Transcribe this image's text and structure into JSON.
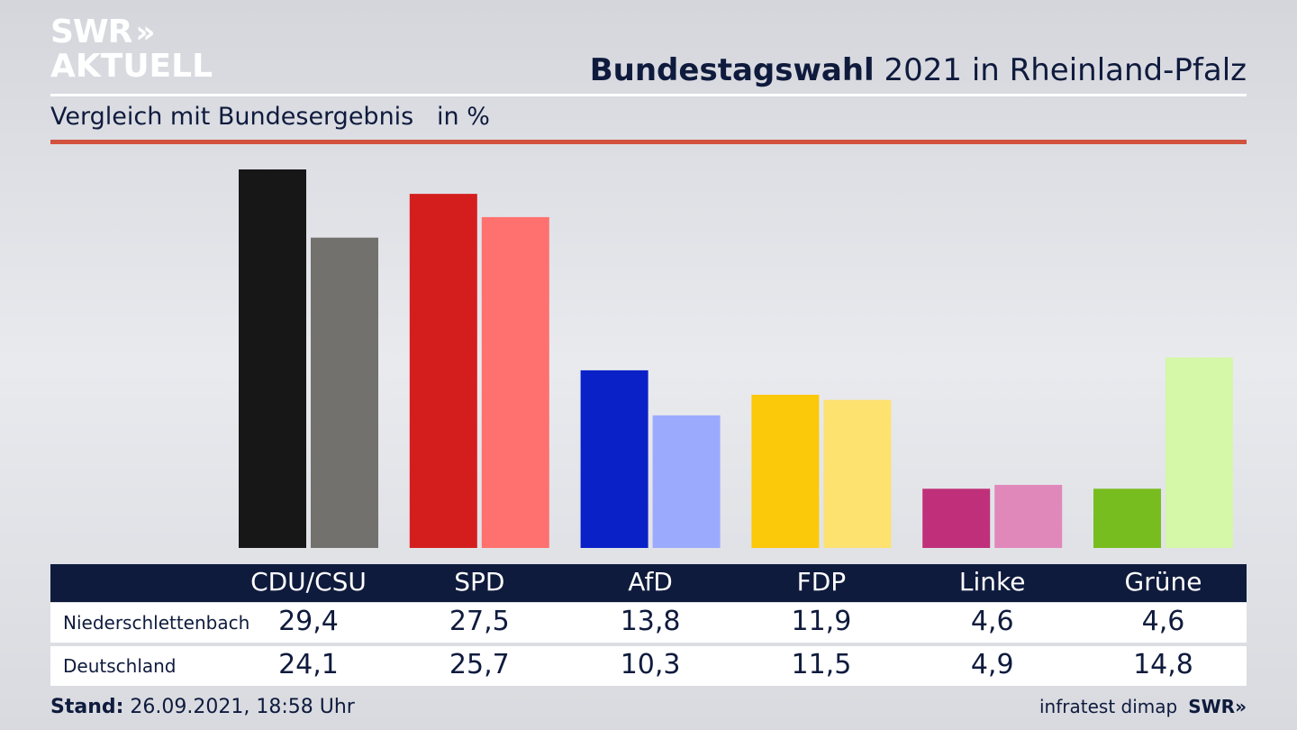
{
  "logo": {
    "line1": "SWR",
    "chevrons": "»",
    "line2": "AKTUELL"
  },
  "header": {
    "title_bold": "Bundestagswahl",
    "title_rest": " 2021 in Rheinland-Pfalz",
    "subtitle": "Vergleich mit Bundesergebnis   in %"
  },
  "colors": {
    "navy": "#0f1b3d",
    "accent_red": "#d2523f"
  },
  "chart_data": {
    "type": "bar",
    "title": "Bundestagswahl 2021 in Rheinland-Pfalz",
    "subtitle": "Vergleich mit Bundesergebnis   in %",
    "categories": [
      "CDU/CSU",
      "SPD",
      "AfD",
      "FDP",
      "Linke",
      "Grüne"
    ],
    "series": [
      {
        "name": "Niederschlettenbach",
        "values": [
          29.4,
          27.5,
          13.8,
          11.9,
          4.6,
          4.6
        ],
        "display": [
          "29,4",
          "27,5",
          "13,8",
          "11,9",
          "4,6",
          "4,6"
        ],
        "colors": [
          "#171717",
          "#d41e1e",
          "#0a21c8",
          "#fcc80a",
          "#c0307a",
          "#78bd1f"
        ]
      },
      {
        "name": "Deutschland",
        "values": [
          24.1,
          25.7,
          10.3,
          11.5,
          4.9,
          14.8
        ],
        "display": [
          "24,1",
          "25,7",
          "10,3",
          "11,5",
          "4,9",
          "14,8"
        ],
        "colors": [
          "#72716e",
          "#fe716e",
          "#9caafe",
          "#fde270",
          "#e188bb",
          "#d4f7a8"
        ]
      }
    ],
    "ylim": [
      0,
      30
    ],
    "grid": false,
    "legend": "table-below"
  },
  "footer": {
    "stand_label": "Stand:",
    "stand_value": " 26.09.2021, 18:58 Uhr",
    "source": "infratest dimap",
    "brand": "SWR»"
  }
}
